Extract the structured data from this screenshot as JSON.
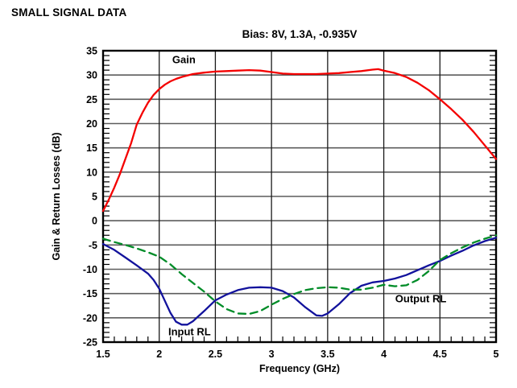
{
  "page_heading": "SMALL SIGNAL DATA",
  "chart_data": {
    "type": "line",
    "title": "Bias: 8V, 1.3A, -0.935V",
    "xlabel": "Frequency (GHz)",
    "ylabel": "Gain & Return Losses (dB)",
    "xlim": [
      1.5,
      5
    ],
    "ylim": [
      -25,
      35
    ],
    "x_tick_values": [
      1.5,
      2,
      2.5,
      3,
      3.5,
      4,
      4.5,
      5
    ],
    "x_tick_labels": [
      "1.5",
      "2",
      "2.5",
      "3",
      "3.5",
      "4",
      "4.5",
      "5"
    ],
    "y_tick_values": [
      35,
      30,
      25,
      20,
      15,
      10,
      5,
      0,
      -5,
      -10,
      -15,
      -20,
      -25
    ],
    "y_tick_labels": [
      "35",
      "30",
      "25",
      "20",
      "15",
      "10",
      "5",
      "0",
      "-5",
      "-10",
      "-15",
      "-20",
      "-25"
    ],
    "x_minor_step": 0.1,
    "y_minor_step": 1,
    "grid": true,
    "legend_position": "inline-annotations",
    "colors": {
      "gain": "#f40000",
      "input_rl": "#12129c",
      "output_rl": "#008c28",
      "grid_h": "#5c5c5c",
      "grid_v": "#1a1a1a",
      "frame": "#000000",
      "text": "#000000"
    },
    "series": [
      {
        "name": "Gain",
        "style": "solid",
        "color_key": "gain",
        "points": [
          [
            1.5,
            2.0
          ],
          [
            1.55,
            4.3
          ],
          [
            1.6,
            6.8
          ],
          [
            1.65,
            9.6
          ],
          [
            1.7,
            12.8
          ],
          [
            1.75,
            16.0
          ],
          [
            1.8,
            19.8
          ],
          [
            1.85,
            22.2
          ],
          [
            1.9,
            24.3
          ],
          [
            1.95,
            25.9
          ],
          [
            2.0,
            27.1
          ],
          [
            2.05,
            28.0
          ],
          [
            2.1,
            28.7
          ],
          [
            2.15,
            29.2
          ],
          [
            2.2,
            29.6
          ],
          [
            2.3,
            30.2
          ],
          [
            2.4,
            30.5
          ],
          [
            2.5,
            30.7
          ],
          [
            2.6,
            30.8
          ],
          [
            2.7,
            30.9
          ],
          [
            2.8,
            31.0
          ],
          [
            2.9,
            30.9
          ],
          [
            3.0,
            30.6
          ],
          [
            3.1,
            30.3
          ],
          [
            3.2,
            30.2
          ],
          [
            3.3,
            30.2
          ],
          [
            3.4,
            30.2
          ],
          [
            3.5,
            30.3
          ],
          [
            3.6,
            30.4
          ],
          [
            3.7,
            30.6
          ],
          [
            3.8,
            30.8
          ],
          [
            3.9,
            31.1
          ],
          [
            3.95,
            31.2
          ],
          [
            4.0,
            30.9
          ],
          [
            4.1,
            30.4
          ],
          [
            4.2,
            29.6
          ],
          [
            4.3,
            28.4
          ],
          [
            4.4,
            26.9
          ],
          [
            4.5,
            25.0
          ],
          [
            4.6,
            23.0
          ],
          [
            4.7,
            20.8
          ],
          [
            4.8,
            18.3
          ],
          [
            4.9,
            15.5
          ],
          [
            5.0,
            12.7
          ]
        ]
      },
      {
        "name": "Input RL",
        "style": "solid",
        "color_key": "input_rl",
        "points": [
          [
            1.5,
            -4.8
          ],
          [
            1.6,
            -6.0
          ],
          [
            1.7,
            -7.6
          ],
          [
            1.8,
            -9.2
          ],
          [
            1.9,
            -10.9
          ],
          [
            1.95,
            -12.2
          ],
          [
            2.0,
            -14.0
          ],
          [
            2.05,
            -16.5
          ],
          [
            2.1,
            -19.0
          ],
          [
            2.15,
            -20.8
          ],
          [
            2.2,
            -21.4
          ],
          [
            2.25,
            -21.4
          ],
          [
            2.3,
            -20.7
          ],
          [
            2.4,
            -18.6
          ],
          [
            2.5,
            -16.4
          ],
          [
            2.6,
            -15.2
          ],
          [
            2.7,
            -14.3
          ],
          [
            2.8,
            -13.8
          ],
          [
            2.9,
            -13.7
          ],
          [
            3.0,
            -13.8
          ],
          [
            3.1,
            -14.5
          ],
          [
            3.2,
            -15.8
          ],
          [
            3.3,
            -17.8
          ],
          [
            3.4,
            -19.5
          ],
          [
            3.45,
            -19.6
          ],
          [
            3.5,
            -19.1
          ],
          [
            3.6,
            -17.2
          ],
          [
            3.7,
            -14.9
          ],
          [
            3.8,
            -13.4
          ],
          [
            3.9,
            -12.7
          ],
          [
            4.0,
            -12.4
          ],
          [
            4.1,
            -11.9
          ],
          [
            4.2,
            -11.2
          ],
          [
            4.3,
            -10.2
          ],
          [
            4.4,
            -9.2
          ],
          [
            4.5,
            -8.3
          ],
          [
            4.6,
            -7.2
          ],
          [
            4.7,
            -6.2
          ],
          [
            4.8,
            -5.1
          ],
          [
            4.9,
            -4.2
          ],
          [
            5.0,
            -3.5
          ]
        ]
      },
      {
        "name": "Output RL",
        "style": "dashed",
        "color_key": "output_rl",
        "points": [
          [
            1.5,
            -3.7
          ],
          [
            1.6,
            -4.4
          ],
          [
            1.7,
            -5.0
          ],
          [
            1.8,
            -5.7
          ],
          [
            1.9,
            -6.5
          ],
          [
            2.0,
            -7.4
          ],
          [
            2.1,
            -9.0
          ],
          [
            2.2,
            -11.0
          ],
          [
            2.3,
            -12.8
          ],
          [
            2.4,
            -14.6
          ],
          [
            2.5,
            -16.6
          ],
          [
            2.6,
            -18.2
          ],
          [
            2.7,
            -19.1
          ],
          [
            2.8,
            -19.2
          ],
          [
            2.9,
            -18.6
          ],
          [
            3.0,
            -17.3
          ],
          [
            3.1,
            -16.1
          ],
          [
            3.2,
            -15.1
          ],
          [
            3.3,
            -14.3
          ],
          [
            3.4,
            -13.9
          ],
          [
            3.5,
            -13.7
          ],
          [
            3.6,
            -13.8
          ],
          [
            3.7,
            -14.2
          ],
          [
            3.8,
            -14.2
          ],
          [
            3.9,
            -13.8
          ],
          [
            4.0,
            -13.2
          ],
          [
            4.1,
            -13.5
          ],
          [
            4.2,
            -13.3
          ],
          [
            4.3,
            -12.2
          ],
          [
            4.4,
            -10.4
          ],
          [
            4.5,
            -8.1
          ],
          [
            4.6,
            -6.7
          ],
          [
            4.7,
            -5.5
          ],
          [
            4.8,
            -4.5
          ],
          [
            4.9,
            -3.7
          ],
          [
            5.0,
            -3.0
          ]
        ]
      }
    ],
    "annotations": [
      {
        "text": "Gain",
        "x": 2.22,
        "y": 32.4,
        "series": "gain"
      },
      {
        "text": "Input RL",
        "x": 2.27,
        "y": -23.6,
        "series": "input_rl"
      },
      {
        "text": "Output RL",
        "x": 4.33,
        "y": -16.8,
        "series": "output_rl"
      }
    ]
  }
}
